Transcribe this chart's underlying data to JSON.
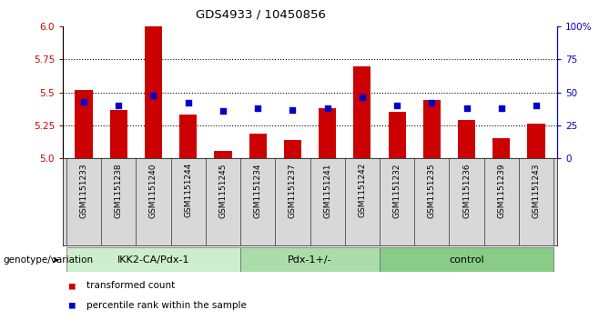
{
  "title": "GDS4933 / 10450856",
  "samples": [
    "GSM1151233",
    "GSM1151238",
    "GSM1151240",
    "GSM1151244",
    "GSM1151245",
    "GSM1151234",
    "GSM1151237",
    "GSM1151241",
    "GSM1151242",
    "GSM1151232",
    "GSM1151235",
    "GSM1151236",
    "GSM1151239",
    "GSM1151243"
  ],
  "bar_values": [
    5.52,
    5.37,
    6.0,
    5.33,
    5.06,
    5.19,
    5.14,
    5.38,
    5.7,
    5.35,
    5.44,
    5.29,
    5.15,
    5.26
  ],
  "percentile_values": [
    43,
    40,
    48,
    42,
    36,
    38,
    37,
    38,
    46,
    40,
    42,
    38,
    38,
    40
  ],
  "ylim_left": [
    5.0,
    6.0
  ],
  "ylim_right": [
    0,
    100
  ],
  "yticks_left": [
    5.0,
    5.25,
    5.5,
    5.75,
    6.0
  ],
  "yticks_right": [
    0,
    25,
    50,
    75,
    100
  ],
  "ytick_labels_right": [
    "0",
    "25",
    "50",
    "75",
    "100%"
  ],
  "bar_color": "#cc0000",
  "dot_color": "#0000cc",
  "groups": [
    {
      "label": "IKK2-CA/Pdx-1",
      "start": 0,
      "end": 4,
      "color": "#ccffcc"
    },
    {
      "label": "Pdx-1+/-",
      "start": 5,
      "end": 8,
      "color": "#aaeebb"
    },
    {
      "label": "control",
      "start": 9,
      "end": 13,
      "color": "#88dd99"
    }
  ],
  "legend_items": [
    {
      "color": "#cc0000",
      "label": "transformed count"
    },
    {
      "color": "#0000cc",
      "label": "percentile rank within the sample"
    }
  ],
  "xlabel_group": "genotype/variation",
  "bar_width": 0.5,
  "dot_size": 22,
  "plot_bg": "#ffffff"
}
